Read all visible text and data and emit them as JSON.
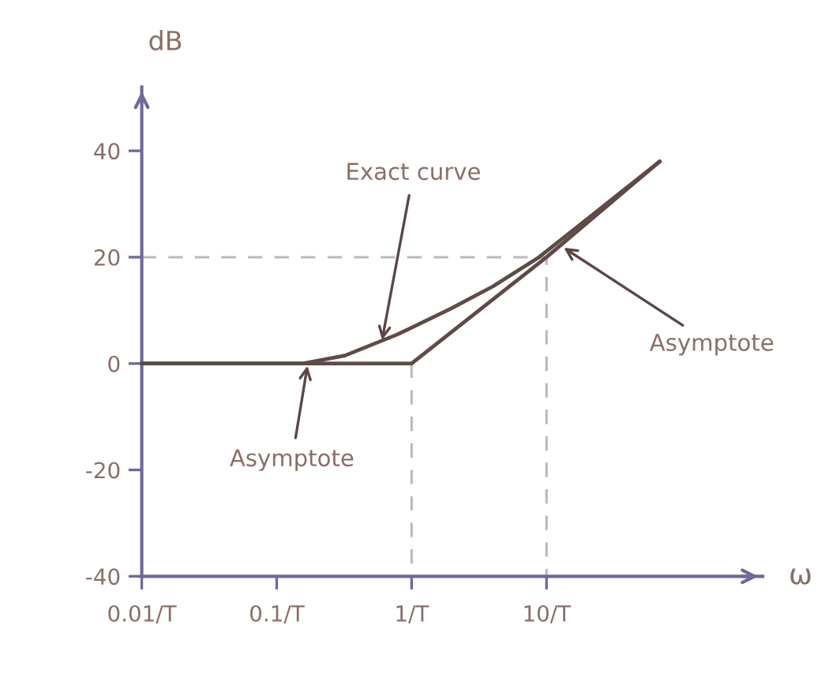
{
  "chart_data": {
    "type": "line",
    "xlabel": "ω",
    "ylabel": "dB",
    "log": "x",
    "grid": false,
    "line_style": "solid",
    "xlim": [
      0.01,
      400
    ],
    "ylim": [
      -40,
      52
    ],
    "xticks": [
      {
        "value": 0.01,
        "label": "0.01/T"
      },
      {
        "value": 0.1,
        "label": "0.1/T"
      },
      {
        "value": 1,
        "label": "1/T"
      },
      {
        "value": 10,
        "label": "10/T"
      }
    ],
    "yticks": [
      -40,
      -20,
      0,
      20,
      40
    ],
    "series": [
      {
        "color": "#5f4a47",
        "x": [
          0.01,
          0.155,
          0.32,
          0.79,
          1.94,
          4,
          8.8,
          69
        ],
        "values": [
          0,
          0,
          1.5,
          5.5,
          10.3,
          14.5,
          20,
          38
        ]
      },
      {
        "color": "#5f4a47",
        "x": [
          0.01,
          1,
          10,
          69
        ],
        "values": [
          0,
          0,
          20,
          38
        ]
      },
      {
        "color": "#b9b9b9",
        "line_style": "dashed",
        "x": [
          0.01,
          10,
          10
        ],
        "values": [
          20,
          20,
          -40
        ]
      },
      {
        "color": "#b9b9b9",
        "line_style": "dashed",
        "x": [
          1,
          1
        ],
        "values": [
          0,
          -40
        ]
      }
    ],
    "annotations": [
      {
        "text": "Exact curve",
        "x": 0.6,
        "y": 4
      },
      {
        "text": "Asymptote",
        "x": 13,
        "y": 22
      },
      {
        "text": "Asymptote",
        "x": 0.17,
        "y": 0
      }
    ]
  }
}
